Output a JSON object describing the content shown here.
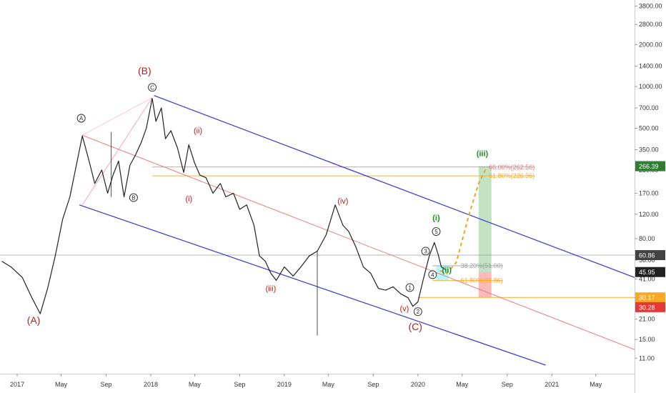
{
  "chart_data": {
    "type": "line",
    "scale": "log",
    "x_range": [
      "2016-11-15",
      "2021-08-15"
    ],
    "ylim": [
      8.5,
      4200
    ],
    "x_ticks": [
      {
        "label": "2017",
        "date": "2017-01-01"
      },
      {
        "label": "May",
        "date": "2017-05-01"
      },
      {
        "label": "Sep",
        "date": "2017-09-01"
      },
      {
        "label": "2018",
        "date": "2018-01-01"
      },
      {
        "label": "May",
        "date": "2018-05-01"
      },
      {
        "label": "Sep",
        "date": "2018-09-01"
      },
      {
        "label": "2019",
        "date": "2019-01-01"
      },
      {
        "label": "May",
        "date": "2019-05-01"
      },
      {
        "label": "Sep",
        "date": "2019-09-01"
      },
      {
        "label": "2020",
        "date": "2020-01-01"
      },
      {
        "label": "May",
        "date": "2020-05-01"
      },
      {
        "label": "Sep",
        "date": "2020-09-01"
      },
      {
        "label": "2021",
        "date": "2021-01-01"
      },
      {
        "label": "May",
        "date": "2021-05-01"
      }
    ],
    "y_ticks": [
      "3800.00",
      "2800.00",
      "2000.00",
      "1400.00",
      "1000.00",
      "700.00",
      "500.00",
      "350.00",
      "250.00",
      "170.00",
      "120.00",
      "80.00",
      "56.00",
      "41.00",
      "30.00",
      "21.00",
      "15.00",
      "11.00"
    ],
    "y_tick_values": [
      3800,
      2800,
      2000,
      1400,
      1000,
      700,
      500,
      350,
      250,
      170,
      120,
      80,
      56,
      41,
      30,
      21,
      15,
      11
    ],
    "price_series": {
      "x": [
        "2016-11-20",
        "2016-12-15",
        "2017-01-15",
        "2017-02-10",
        "2017-03-05",
        "2017-03-25",
        "2017-04-15",
        "2017-05-05",
        "2017-05-25",
        "2017-06-15",
        "2017-06-28",
        "2017-07-15",
        "2017-08-01",
        "2017-08-20",
        "2017-09-05",
        "2017-09-20",
        "2017-10-05",
        "2017-10-20",
        "2017-11-05",
        "2017-11-20",
        "2017-12-05",
        "2017-12-20",
        "2018-01-05",
        "2018-01-15",
        "2018-01-30",
        "2018-02-10",
        "2018-02-25",
        "2018-03-15",
        "2018-04-01",
        "2018-04-15",
        "2018-05-01",
        "2018-05-15",
        "2018-06-01",
        "2018-06-20",
        "2018-07-10",
        "2018-07-25",
        "2018-08-15",
        "2018-09-01",
        "2018-09-20",
        "2018-10-10",
        "2018-10-25",
        "2018-11-10",
        "2018-11-25",
        "2018-12-10",
        "2019-01-01",
        "2019-01-25",
        "2019-02-15",
        "2019-03-10",
        "2019-04-01",
        "2019-04-25",
        "2019-05-20",
        "2019-06-10",
        "2019-06-26",
        "2019-07-15",
        "2019-08-05",
        "2019-08-25",
        "2019-09-15",
        "2019-10-05",
        "2019-10-25",
        "2019-11-15",
        "2019-12-05",
        "2019-12-18",
        "2020-01-01",
        "2020-01-15",
        "2020-02-01",
        "2020-02-15",
        "2020-02-25",
        "2020-03-05",
        "2020-03-15"
      ],
      "values": [
        55,
        50,
        42,
        30,
        23,
        35,
        60,
        110,
        160,
        300,
        440,
        300,
        200,
        250,
        170,
        230,
        290,
        160,
        270,
        320,
        390,
        500,
        820,
        560,
        700,
        420,
        480,
        360,
        240,
        380,
        280,
        230,
        220,
        170,
        200,
        160,
        170,
        130,
        140,
        100,
        60,
        55,
        45,
        40,
        50,
        43,
        50,
        60,
        65,
        85,
        140,
        100,
        90,
        70,
        50,
        45,
        35,
        34,
        36,
        32,
        30,
        26,
        28,
        40,
        60,
        75,
        62,
        50,
        48
      ]
    },
    "channel_upper": {
      "x": [
        "2018-01-10",
        "2021-08-15"
      ],
      "values": [
        860,
        42
      ]
    },
    "channel_lower": {
      "x": [
        "2017-06-20",
        "2020-12-15"
      ],
      "values": [
        140,
        9.8
      ]
    },
    "mid_line": {
      "x": [
        "2017-06-28",
        "2021-08-15"
      ],
      "values": [
        445,
        12.7
      ]
    },
    "projection": {
      "x": [
        "2020-03-01",
        "2020-03-20",
        "2020-04-15",
        "2020-05-20",
        "2020-06-15",
        "2020-07-05"
      ],
      "values": [
        47,
        45,
        54,
        120,
        200,
        255
      ]
    },
    "fib_levels": [
      {
        "label": "66.00%(262.56)",
        "value": 262.56,
        "color": "#e57373",
        "x_start": "2018-01-05",
        "x_end": "2020-11-15"
      },
      {
        "label": "61.80%(226.96)",
        "value": 226.96,
        "color": "#f9a825",
        "x_start": "2018-01-05",
        "x_end": "2020-11-15"
      },
      {
        "label": "38.20%(51.00)",
        "value": 51.0,
        "color": "#9e9e9e",
        "x_start": "2020-02-10",
        "x_end": "2020-08-20"
      },
      {
        "label": "61.80%(39.86)",
        "value": 39.86,
        "color": "#f9a825",
        "x_start": "2020-02-10",
        "x_end": "2020-08-20"
      }
    ],
    "support_line": {
      "value": 30.17,
      "color": "#f9a825",
      "x_start": "2020-01-01"
    },
    "current_price_line": {
      "value": 60.86,
      "color": "#9e9e9e"
    },
    "wave_labels": [
      {
        "text": "(A)",
        "style": "red-paren",
        "date": "2017-02-15",
        "price": 19.5
      },
      {
        "text": "(B)",
        "style": "red-paren",
        "date": "2017-12-15",
        "price": 1220
      },
      {
        "text": "(C)",
        "style": "red-paren",
        "date": "2019-12-25",
        "price": 17.5
      },
      {
        "text": "A",
        "style": "circle-black",
        "date": "2017-06-25",
        "price": 590
      },
      {
        "text": "B",
        "style": "circle-black",
        "date": "2017-11-15",
        "price": 158
      },
      {
        "text": "C",
        "style": "circle-black",
        "date": "2018-01-05",
        "price": 985
      },
      {
        "text": "(ii)",
        "style": "red",
        "date": "2018-05-10",
        "price": 460
      },
      {
        "text": "(i)",
        "style": "red",
        "date": "2018-04-15",
        "price": 148
      },
      {
        "text": "(iii)",
        "style": "red",
        "date": "2018-11-25",
        "price": 33.5
      },
      {
        "text": "(iv)",
        "style": "red",
        "date": "2019-06-10",
        "price": 143
      },
      {
        "text": "(v)",
        "style": "red",
        "date": "2019-11-25",
        "price": 24
      },
      {
        "text": "1",
        "style": "circle-black",
        "date": "2019-12-10",
        "price": 35.5
      },
      {
        "text": "2",
        "style": "circle-black",
        "date": "2020-01-01",
        "price": 23.8
      },
      {
        "text": "3",
        "style": "circle-black",
        "date": "2020-01-22",
        "price": 65
      },
      {
        "text": "4",
        "style": "circle-black",
        "date": "2020-02-10",
        "price": 44
      },
      {
        "text": "5",
        "style": "circle-black",
        "date": "2020-02-20",
        "price": 90
      },
      {
        "text": "(i)",
        "style": "green",
        "date": "2020-02-20",
        "price": 108
      },
      {
        "text": "(ii)",
        "style": "green",
        "date": "2020-03-20",
        "price": 45.5
      },
      {
        "text": "(iii)",
        "style": "green",
        "date": "2020-06-25",
        "price": 315
      }
    ],
    "price_boxes": [
      {
        "label": "266.39",
        "value": 266.39,
        "bg": "#2e7d32",
        "fg": "#ffffff"
      },
      {
        "label": "60.86",
        "value": 60.86,
        "bg": "#424242",
        "fg": "#ffffff"
      },
      {
        "label": "45.95",
        "value": 45.95,
        "bg": "#212121",
        "fg": "#ffffff"
      },
      {
        "label": "30.17",
        "value": 30.17,
        "bg": "#f9a825",
        "fg": "#ffffff"
      },
      {
        "label": "30.28",
        "value": 30.28,
        "bg": "#e53935",
        "fg": "#ffffff"
      }
    ],
    "target_box": {
      "date_start": "2020-06-15",
      "date_end": "2020-07-20",
      "price_top": 266.39,
      "price_entry": 45.95,
      "price_stop": 30.28
    },
    "entry_box": {
      "date_start": "2020-02-20",
      "date_end": "2020-03-25",
      "price_top": 51.0,
      "price_bottom": 39.86
    },
    "colors": {
      "channel": "#3535c8",
      "midline": "#e57373",
      "wave_red": "#b71c1c",
      "wave_green": "#1e8e1e",
      "projection": "#f39c12",
      "price": "#222222"
    }
  }
}
